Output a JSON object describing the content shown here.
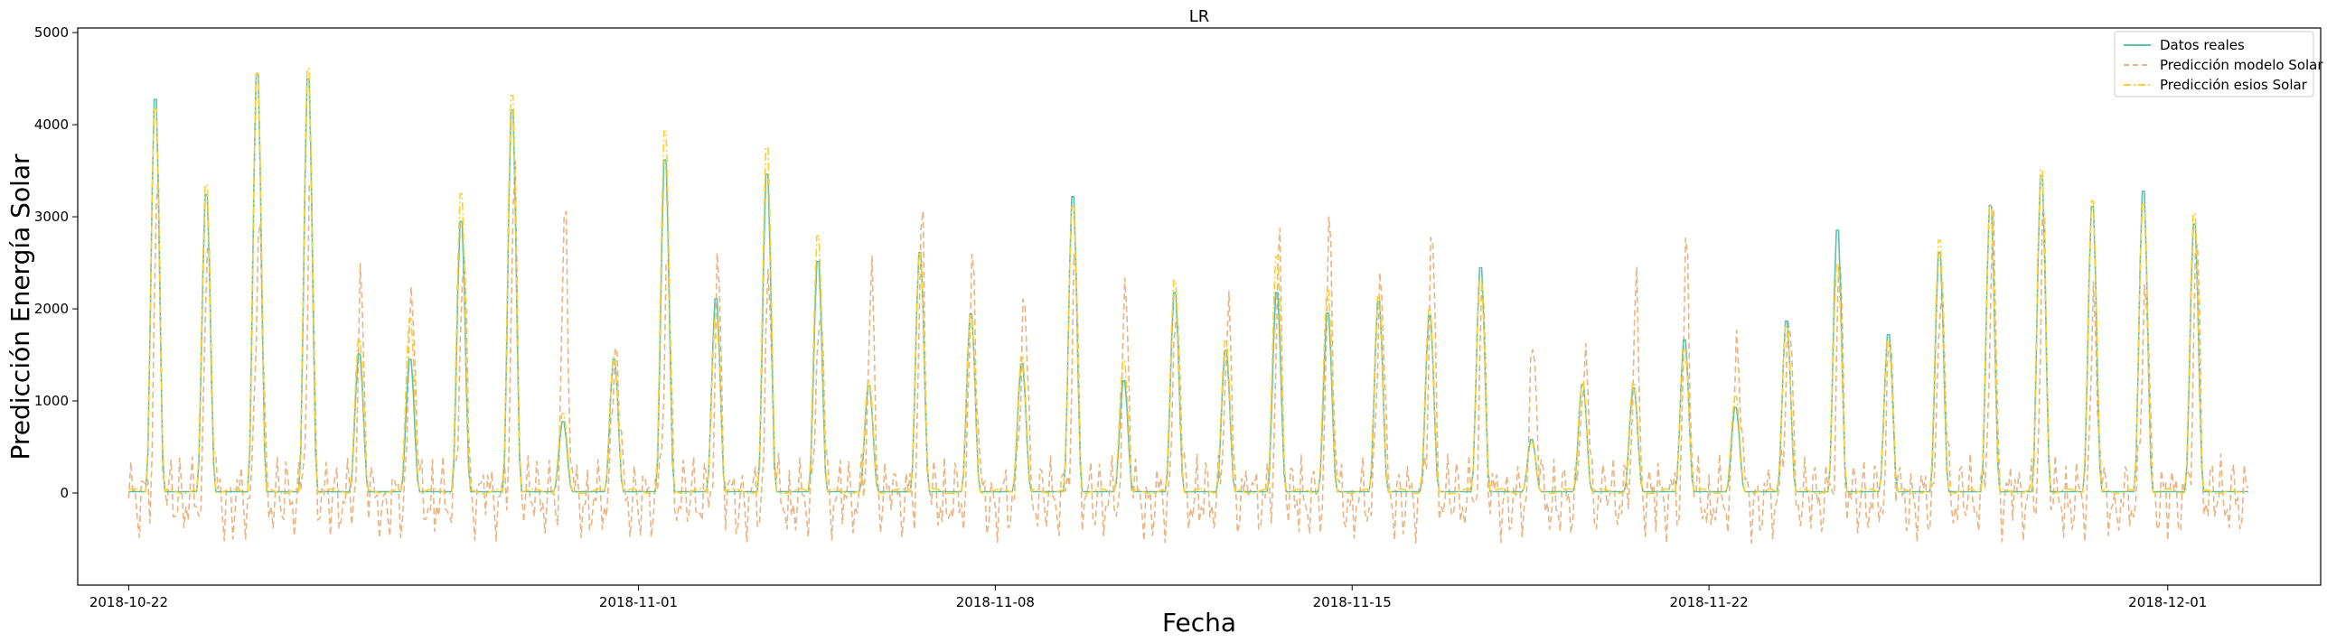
{
  "chart_data": {
    "type": "line",
    "title": "LR",
    "xlabel": "Fecha",
    "ylabel": "Predicción Energía Solar",
    "x_start": "2018-10-22",
    "x_end": "2018-12-02",
    "xlim": [
      "2018-10-21",
      "2018-12-04"
    ],
    "ylim": [
      -1000,
      5050
    ],
    "x_ticks": [
      "2018-10-22",
      "2018-11-01",
      "2018-11-08",
      "2018-11-15",
      "2018-11-22",
      "2018-12-01"
    ],
    "y_ticks": [
      0,
      1000,
      2000,
      3000,
      4000,
      5000
    ],
    "grid": false,
    "legend_position": "top-right",
    "daily_peaks": {
      "dates": [
        "2018-10-22",
        "2018-10-23",
        "2018-10-24",
        "2018-10-25",
        "2018-10-26",
        "2018-10-27",
        "2018-10-28",
        "2018-10-29",
        "2018-10-30",
        "2018-10-31",
        "2018-11-01",
        "2018-11-02",
        "2018-11-03",
        "2018-11-04",
        "2018-11-05",
        "2018-11-06",
        "2018-11-07",
        "2018-11-08",
        "2018-11-09",
        "2018-11-10",
        "2018-11-11",
        "2018-11-12",
        "2018-11-13",
        "2018-11-14",
        "2018-11-15",
        "2018-11-16",
        "2018-11-17",
        "2018-11-18",
        "2018-11-19",
        "2018-11-20",
        "2018-11-21",
        "2018-11-22",
        "2018-11-23",
        "2018-11-24",
        "2018-11-25",
        "2018-11-26",
        "2018-11-27",
        "2018-11-28",
        "2018-11-29",
        "2018-11-30",
        "2018-12-01",
        "2018-12-02"
      ],
      "real": [
        4420,
        3350,
        4700,
        4650,
        1560,
        1500,
        3050,
        4300,
        800,
        1500,
        3740,
        2180,
        3580,
        2600,
        1200,
        2700,
        2010,
        1450,
        3330,
        1260,
        2250,
        1600,
        2250,
        2020,
        2150,
        1990,
        2530,
        600,
        1220,
        1180,
        1720,
        960,
        1930,
        2950,
        1780,
        2700,
        3230,
        3560,
        3220,
        3390,
        3020,
        0
      ],
      "model": [
        3350,
        2900,
        3280,
        3480,
        2230,
        2460,
        2900,
        3450,
        3120,
        1870,
        2740,
        2410,
        2470,
        2400,
        2430,
        2930,
        2760,
        2410,
        2560,
        2240,
        2340,
        2200,
        2620,
        3000,
        2680,
        2960,
        2180,
        1830,
        1790,
        2190,
        2640,
        1860,
        2160,
        2520,
        1760,
        2640,
        2980,
        2950,
        2220,
        2600,
        2840,
        0
      ],
      "esios": [
        4300,
        3450,
        4700,
        4750,
        1720,
        1950,
        3350,
        4450,
        890,
        1520,
        4050,
        1970,
        3870,
        2880,
        1250,
        2700,
        2000,
        1520,
        3200,
        1480,
        2380,
        1700,
        2650,
        2270,
        2200,
        2050,
        2400,
        560,
        1240,
        1230,
        1600,
        1080,
        1860,
        2560,
        1700,
        2830,
        3220,
        3620,
        3270,
        3230,
        3130,
        0
      ]
    },
    "series": [
      {
        "name": "Datos reales",
        "color": "#5bc0a8",
        "style": "solid"
      },
      {
        "name": "Predicción modelo Solar",
        "color": "#eab483",
        "style": "dashed"
      },
      {
        "name": "Predicción esios Solar",
        "color": "#ffd02a",
        "style": "dashdot"
      }
    ]
  }
}
